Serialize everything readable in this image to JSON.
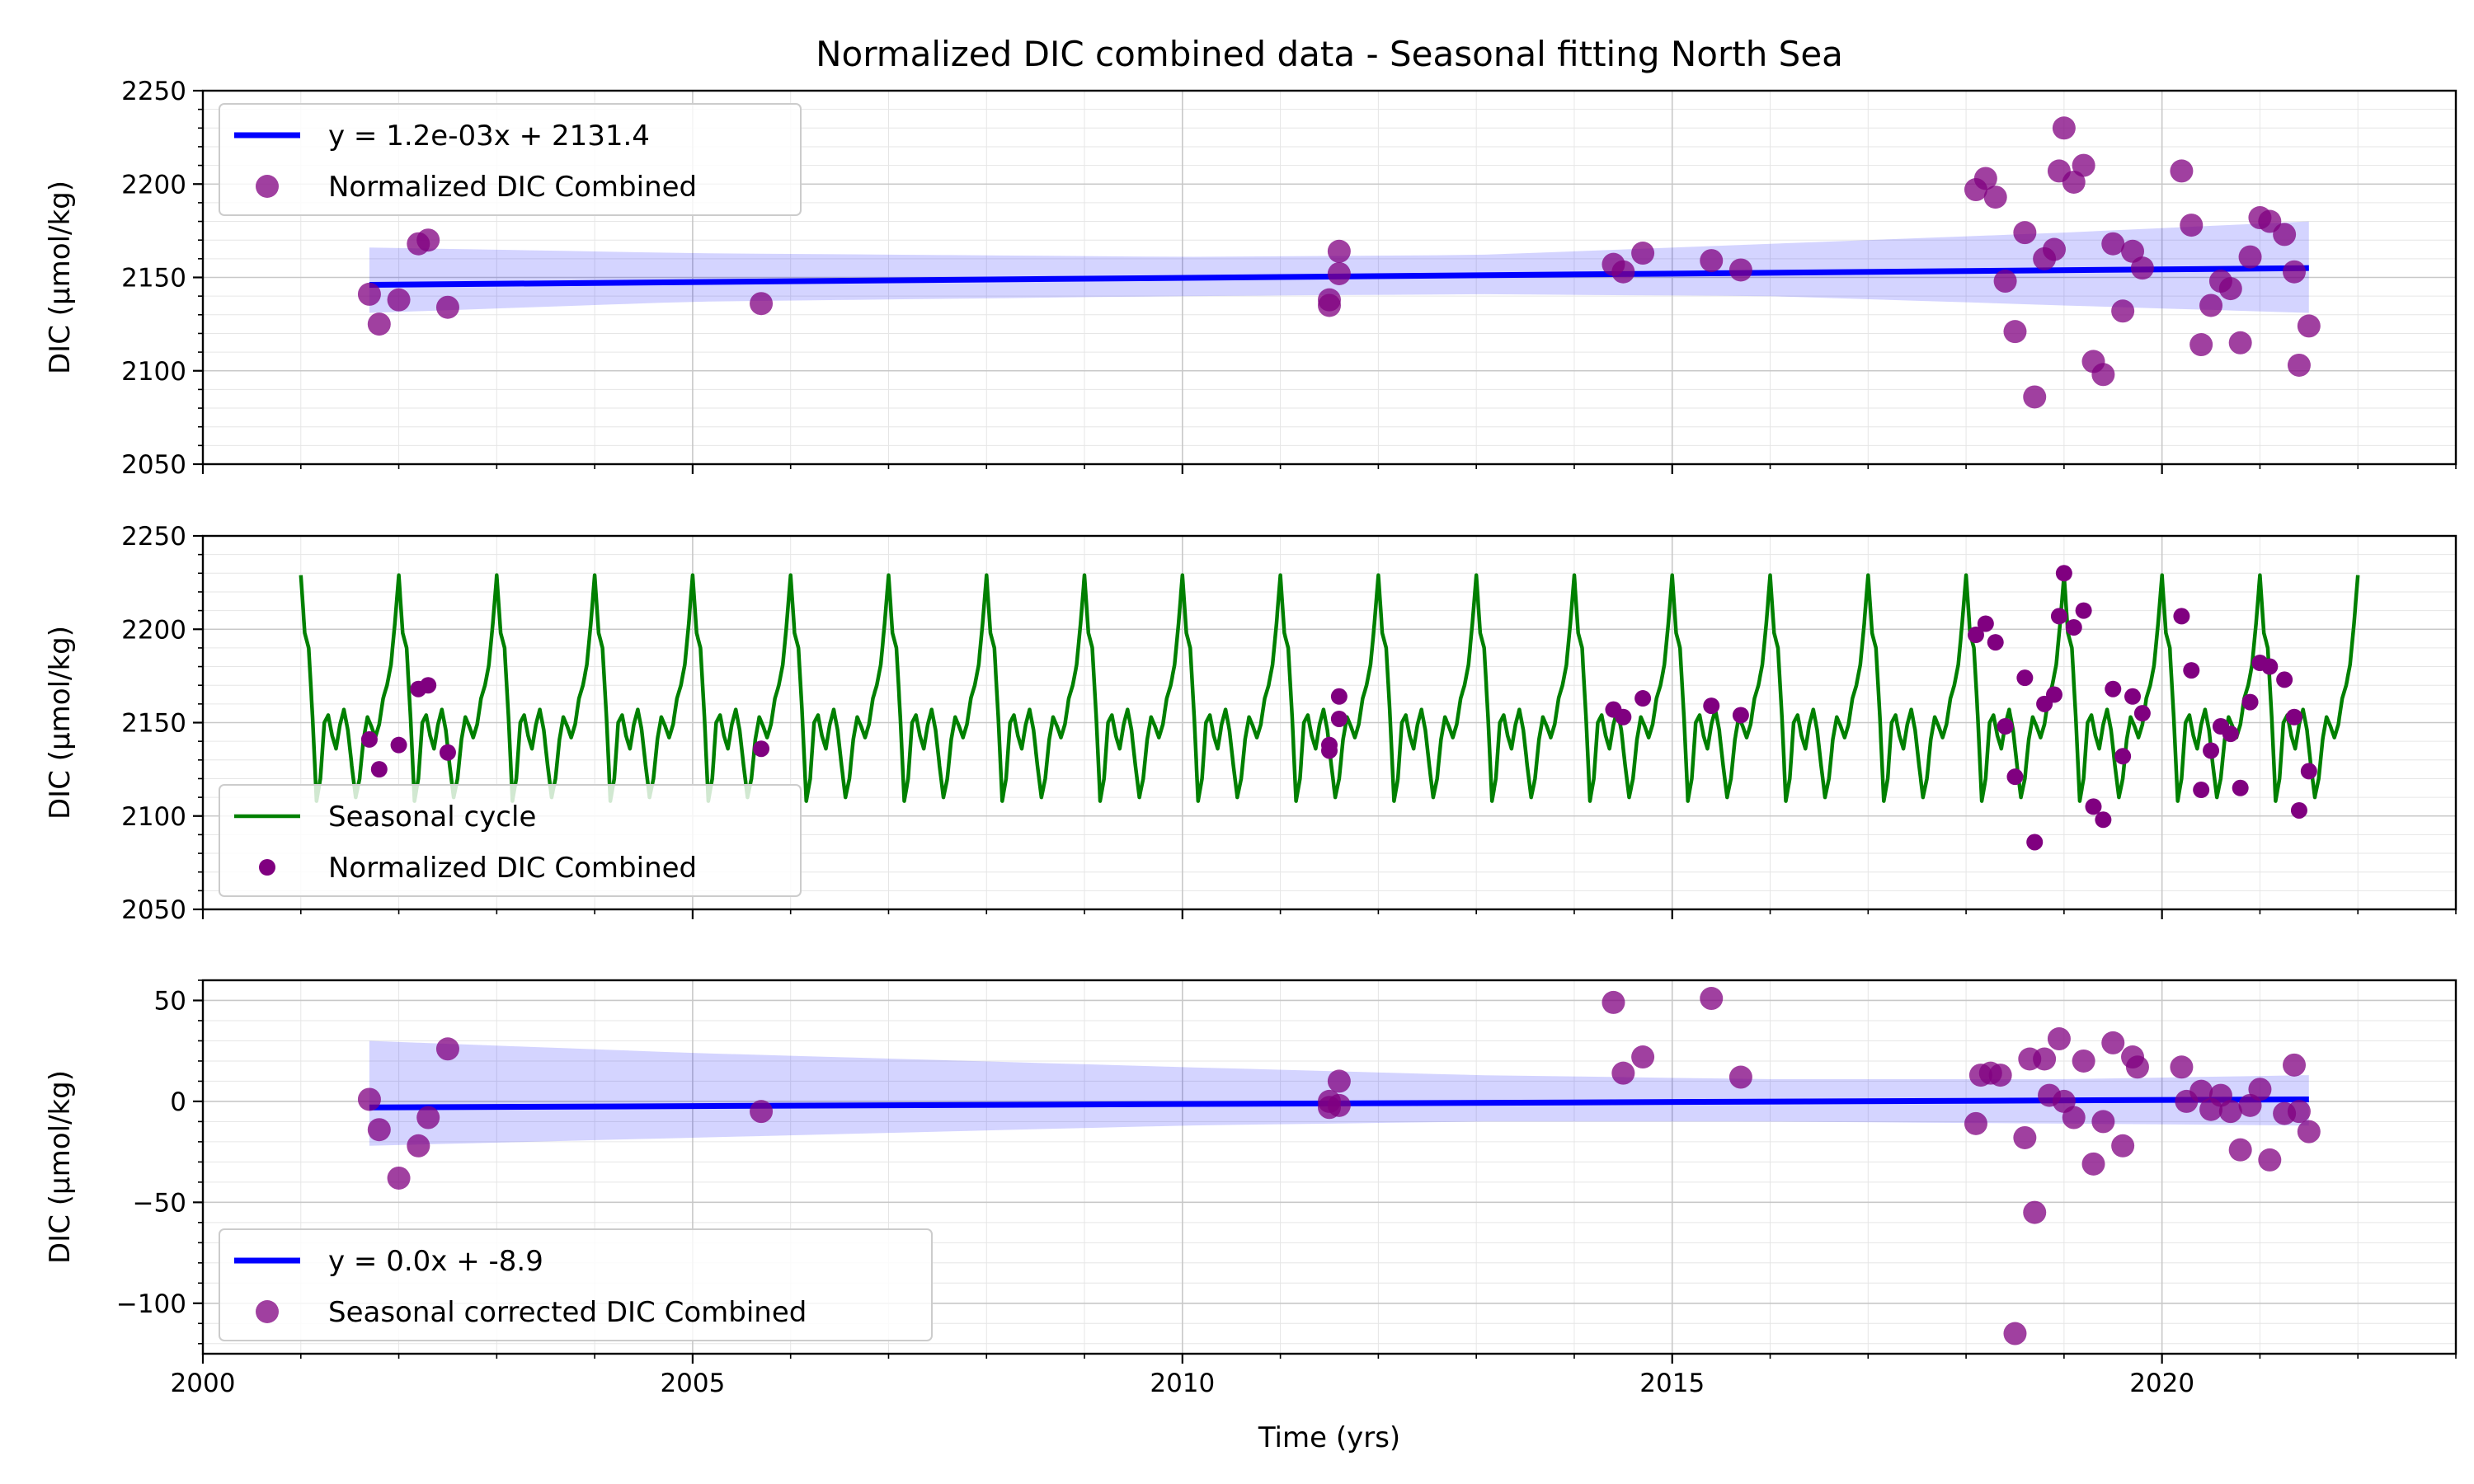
{
  "chart_data": {
    "title": "Normalized DIC combined data - Seasonal fitting North Sea",
    "xlabel": "Time (yrs)",
    "xlim": [
      2000,
      2023
    ],
    "x_ticks": [
      2000,
      2005,
      2010,
      2015,
      2020
    ],
    "grid": true,
    "panels": [
      {
        "type": "scatter",
        "ylabel": "DIC (µmol/kg)",
        "ylim": [
          2050,
          2250
        ],
        "y_ticks": [
          2050,
          2100,
          2150,
          2200,
          2250
        ],
        "y_tick_labels": [
          "2050",
          "2100",
          "2150",
          "2200",
          "2250"
        ],
        "legend_position": "upper-left",
        "series": [
          {
            "kind": "trend_line",
            "name": "y = 1.2e-03x + 2131.4",
            "color": "#0000ff",
            "x": [
              2001.7,
              2021.5
            ],
            "y": [
              2146,
              2155
            ],
            "ci_upper": [
              2166,
              2163,
              2161,
              2162,
              2168,
              2174,
              2180
            ],
            "ci_lower": [
              2131,
              2137,
              2140,
              2141,
              2140,
              2135,
              2131
            ],
            "ci_x": [
              2001.7,
              2005,
              2010,
              2013,
              2016,
              2019,
              2021.5
            ]
          },
          {
            "kind": "points",
            "name": "Normalized DIC Combined",
            "color": "#800080",
            "x": [
              2001.7,
              2001.8,
              2002.0,
              2002.2,
              2002.3,
              2002.5,
              2005.7,
              2011.5,
              2011.5,
              2011.6,
              2011.6,
              2014.4,
              2014.5,
              2014.7,
              2015.4,
              2015.7,
              2018.1,
              2018.2,
              2018.3,
              2018.4,
              2018.5,
              2018.6,
              2018.7,
              2018.8,
              2018.9,
              2018.95,
              2019.0,
              2019.1,
              2019.2,
              2019.3,
              2019.4,
              2019.5,
              2019.6,
              2019.7,
              2019.8,
              2020.2,
              2020.3,
              2020.4,
              2020.5,
              2020.6,
              2020.7,
              2020.8,
              2020.9,
              2021.0,
              2021.1,
              2021.25,
              2021.35,
              2021.4,
              2021.5
            ],
            "y": [
              2141,
              2125,
              2138,
              2168,
              2170,
              2134,
              2136,
              2138,
              2135,
              2152,
              2164,
              2157,
              2153,
              2163,
              2159,
              2154,
              2197,
              2203,
              2193,
              2148,
              2121,
              2174,
              2086,
              2160,
              2165,
              2207,
              2230,
              2201,
              2210,
              2105,
              2098,
              2168,
              2132,
              2164,
              2155,
              2207,
              2178,
              2114,
              2135,
              2148,
              2144,
              2115,
              2161,
              2182,
              2180,
              2173,
              2153,
              2103,
              2124
            ]
          }
        ]
      },
      {
        "type": "line",
        "ylabel": "DIC (µmol/kg)",
        "ylim": [
          2050,
          2250
        ],
        "y_ticks": [
          2050,
          2100,
          2150,
          2200,
          2250
        ],
        "y_tick_labels": [
          "2050",
          "2100",
          "2150",
          "2200",
          "2250"
        ],
        "legend_position": "lower-left",
        "series": [
          {
            "kind": "seasonal_curve",
            "name": "Seasonal cycle",
            "color": "#008000",
            "x_range": [
              2001.0,
              2022.0
            ],
            "period": 1.0,
            "cycle_phase": [
              0.0,
              0.04,
              0.08,
              0.12,
              0.16,
              0.2,
              0.24,
              0.28,
              0.32,
              0.36,
              0.4,
              0.44,
              0.48,
              0.52,
              0.56,
              0.6,
              0.64,
              0.68,
              0.72,
              0.76,
              0.8,
              0.84,
              0.88,
              0.92,
              0.96,
              1.0
            ],
            "cycle_values": [
              2229,
              2198,
              2190,
              2153,
              2108,
              2120,
              2150,
              2154,
              2143,
              2136,
              2149,
              2157,
              2146,
              2127,
              2110,
              2120,
              2141,
              2153,
              2148,
              2142,
              2149,
              2163,
              2170,
              2181,
              2203,
              2229
            ]
          },
          {
            "kind": "points",
            "name": "Normalized DIC Combined",
            "color": "#800080",
            "x": [
              2001.7,
              2001.8,
              2002.0,
              2002.2,
              2002.3,
              2002.5,
              2005.7,
              2011.5,
              2011.5,
              2011.6,
              2011.6,
              2014.4,
              2014.5,
              2014.7,
              2015.4,
              2015.7,
              2018.1,
              2018.2,
              2018.3,
              2018.4,
              2018.5,
              2018.6,
              2018.7,
              2018.8,
              2018.9,
              2018.95,
              2019.0,
              2019.1,
              2019.2,
              2019.3,
              2019.4,
              2019.5,
              2019.6,
              2019.7,
              2019.8,
              2020.2,
              2020.3,
              2020.4,
              2020.5,
              2020.6,
              2020.7,
              2020.8,
              2020.9,
              2021.0,
              2021.1,
              2021.25,
              2021.35,
              2021.4,
              2021.5
            ],
            "y": [
              2141,
              2125,
              2138,
              2168,
              2170,
              2134,
              2136,
              2138,
              2135,
              2152,
              2164,
              2157,
              2153,
              2163,
              2159,
              2154,
              2197,
              2203,
              2193,
              2148,
              2121,
              2174,
              2086,
              2160,
              2165,
              2207,
              2230,
              2201,
              2210,
              2105,
              2098,
              2168,
              2132,
              2164,
              2155,
              2207,
              2178,
              2114,
              2135,
              2148,
              2144,
              2115,
              2161,
              2182,
              2180,
              2173,
              2153,
              2103,
              2124
            ]
          }
        ]
      },
      {
        "type": "scatter",
        "ylabel": "DIC (µmol/kg)",
        "ylim": [
          -125,
          60
        ],
        "y_ticks": [
          -100,
          -50,
          0,
          50
        ],
        "y_tick_labels": [
          "−100",
          "−50",
          "0",
          "50"
        ],
        "legend_position": "lower-left",
        "series": [
          {
            "kind": "trend_line",
            "name": "y = 0.0x + -8.9",
            "color": "#0000ff",
            "x": [
              2001.7,
              2021.5
            ],
            "y": [
              -3,
              1
            ],
            "ci_upper": [
              30,
              24,
              17,
              13,
              11,
              11,
              13
            ],
            "ci_lower": [
              -22,
              -18,
              -12,
              -10,
              -10,
              -11,
              -12
            ],
            "ci_x": [
              2001.7,
              2005,
              2010,
              2013,
              2016,
              2019,
              2021.5
            ]
          },
          {
            "kind": "points",
            "name": "Seasonal corrected DIC Combined",
            "color": "#800080",
            "x": [
              2001.7,
              2001.8,
              2002.0,
              2002.2,
              2002.3,
              2002.5,
              2005.7,
              2011.5,
              2011.5,
              2011.6,
              2011.6,
              2014.4,
              2014.5,
              2014.7,
              2015.4,
              2015.7,
              2018.1,
              2018.15,
              2018.25,
              2018.35,
              2018.5,
              2018.6,
              2018.65,
              2018.7,
              2018.8,
              2018.85,
              2018.95,
              2019.0,
              2019.1,
              2019.2,
              2019.3,
              2019.4,
              2019.5,
              2019.6,
              2019.7,
              2019.75,
              2020.2,
              2020.25,
              2020.4,
              2020.5,
              2020.6,
              2020.7,
              2020.8,
              2020.9,
              2021.0,
              2021.1,
              2021.25,
              2021.35,
              2021.4,
              2021.5
            ],
            "y": [
              1,
              -14,
              -38,
              -22,
              -8,
              26,
              -5,
              -3,
              0,
              10,
              -2,
              49,
              14,
              22,
              51,
              12,
              -11,
              13,
              14,
              13,
              -115,
              -18,
              21,
              -55,
              21,
              3,
              31,
              0,
              -8,
              20,
              -31,
              -10,
              29,
              -22,
              22,
              17,
              17,
              0,
              5,
              -4,
              3,
              -5,
              -24,
              -2,
              6,
              -29,
              -6,
              18,
              -5,
              -15
            ]
          }
        ]
      }
    ]
  }
}
